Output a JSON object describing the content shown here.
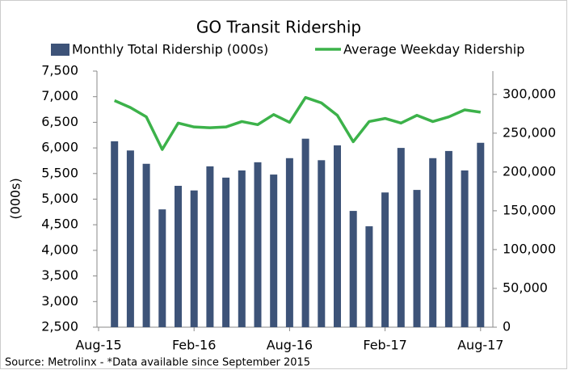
{
  "chart_data": {
    "type": "bar_line",
    "title": "GO Transit Ridership",
    "source": "Source: Metrolinx - *Data available since September 2015",
    "y_axis_label": "(000s)",
    "categories": [
      "Aug-15",
      null,
      null,
      null,
      null,
      null,
      "Feb-16",
      null,
      null,
      null,
      null,
      null,
      "Aug-16",
      null,
      null,
      null,
      null,
      null,
      "Feb-17",
      null,
      null,
      null,
      null,
      null,
      "Aug-17"
    ],
    "series": [
      {
        "name": "Monthly Total Ridership (000s)",
        "type": "bar",
        "axis": "y",
        "color": "#3d5378",
        "values": [
          null,
          6130,
          5950,
          5690,
          4800,
          5260,
          5170,
          5640,
          5420,
          5560,
          5720,
          5480,
          5800,
          6180,
          5760,
          6050,
          4770,
          4470,
          5130,
          6000,
          5180,
          5800,
          5940,
          5560,
          6100
        ]
      },
      {
        "name": "Average Weekday Ridership",
        "type": "line",
        "axis": "y2",
        "color": "#3cb24a",
        "values": [
          null,
          292000,
          283000,
          271000,
          229000,
          263000,
          258000,
          257000,
          258000,
          265000,
          261000,
          274000,
          264000,
          296000,
          289000,
          273000,
          239000,
          265000,
          269000,
          263000,
          273000,
          265000,
          271000,
          280000,
          277000
        ]
      }
    ],
    "ylim": [
      2500,
      7500
    ],
    "yticks": [
      {
        "value": 2500,
        "label": "2,500"
      },
      {
        "value": 3000,
        "label": "3,000"
      },
      {
        "value": 3500,
        "label": "3,500"
      },
      {
        "value": 4000,
        "label": "4,000"
      },
      {
        "value": 4500,
        "label": "4,500"
      },
      {
        "value": 5000,
        "label": "5,000"
      },
      {
        "value": 5500,
        "label": "5,500"
      },
      {
        "value": 6000,
        "label": "6,000"
      },
      {
        "value": 6500,
        "label": "6,500"
      },
      {
        "value": 7000,
        "label": "7,000"
      },
      {
        "value": 7500,
        "label": "7,500"
      }
    ],
    "y2lim": [
      0,
      330000
    ],
    "y2ticks": [
      0,
      {
        "value": 50000,
        "label": "50,000"
      },
      {
        "value": 100000,
        "label": "100,000"
      },
      {
        "value": 150000,
        "label": "150,000"
      },
      {
        "value": 200000,
        "label": "200,000"
      },
      {
        "value": 250000,
        "label": "250,000"
      },
      {
        "value": 300000,
        "label": "300,000"
      }
    ],
    "grid": false
  }
}
